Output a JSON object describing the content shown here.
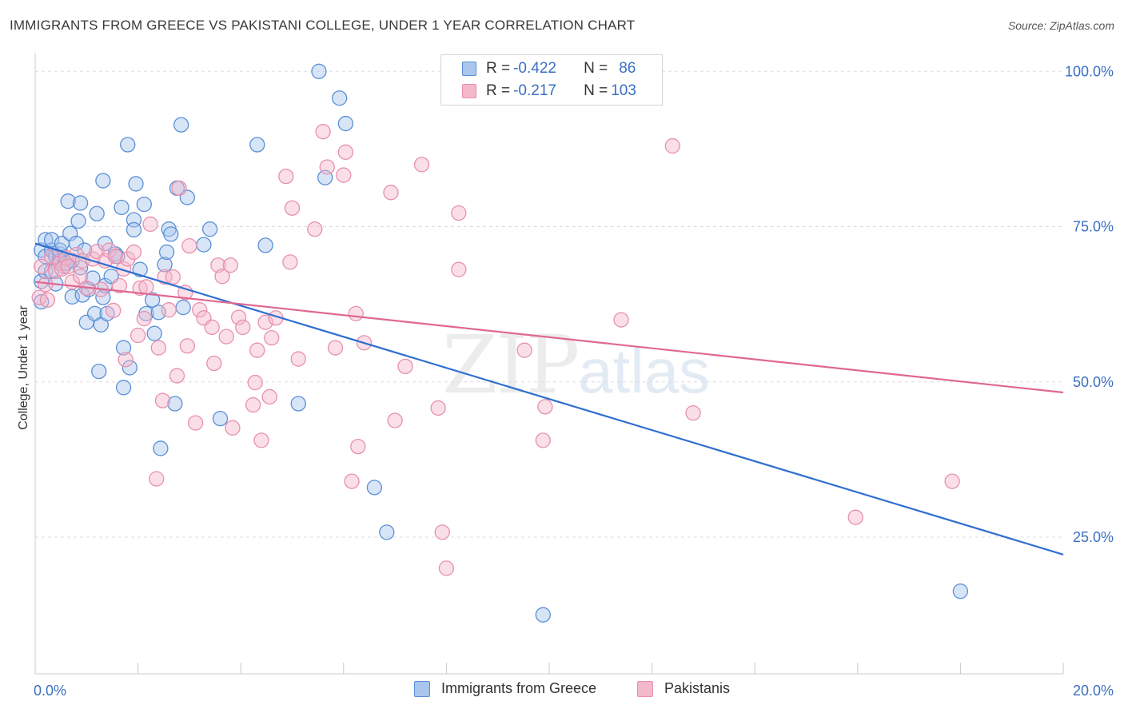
{
  "title": "IMMIGRANTS FROM GREECE VS PAKISTANI COLLEGE, UNDER 1 YEAR CORRELATION CHART",
  "source": "Source: ZipAtlas.com",
  "watermark": {
    "zip": "ZIP",
    "atlas": "atlas"
  },
  "legend": {
    "rows": [
      {
        "r_label": "R =",
        "r_value": "-0.422",
        "n_label": "N =",
        "n_value": "86"
      },
      {
        "r_label": "R =",
        "r_value": "-0.217",
        "n_label": "N =",
        "n_value": "103"
      }
    ]
  },
  "colors": {
    "blue_fill": "#a9c6ee",
    "blue_stroke": "#5b8fd6",
    "blue_line": "#2f6fd0",
    "pink_fill": "#f4b8cb",
    "pink_stroke": "#e890ad",
    "pink_line": "#e06890",
    "axis_text": "#3b6fc4",
    "grid": "#dddddd"
  },
  "chart_data": {
    "type": "scatter",
    "xlabel": "",
    "ylabel": "College, Under 1 year",
    "xlim": [
      0,
      20
    ],
    "ylim": [
      3,
      103
    ],
    "x_tick_labels": {
      "left": "0.0%",
      "right": "20.0%"
    },
    "y_ticks": [
      {
        "value": 100,
        "label": "100.0%"
      },
      {
        "value": 75,
        "label": "75.0%"
      },
      {
        "value": 50,
        "label": "50.0%"
      },
      {
        "value": 25,
        "label": "25.0%"
      }
    ],
    "grid": true,
    "series": [
      {
        "name": "Immigrants from Greece",
        "color": "blue",
        "trend": {
          "x": [
            0,
            20
          ],
          "y": [
            72.3,
            22.2
          ]
        },
        "points": [
          [
            0.12,
            71.2
          ],
          [
            0.12,
            66.2
          ],
          [
            0.12,
            62.9
          ],
          [
            0.2,
            67.8
          ],
          [
            0.2,
            70.2
          ],
          [
            0.2,
            72.9
          ],
          [
            0.32,
            71.2
          ],
          [
            0.32,
            72.9
          ],
          [
            0.32,
            67.8
          ],
          [
            0.4,
            65.8
          ],
          [
            0.4,
            70.2
          ],
          [
            0.48,
            70.6
          ],
          [
            0.48,
            69.5
          ],
          [
            0.48,
            71.2
          ],
          [
            0.52,
            72.3
          ],
          [
            0.56,
            68.6
          ],
          [
            0.6,
            69.1
          ],
          [
            0.64,
            79.1
          ],
          [
            0.68,
            73.9
          ],
          [
            0.72,
            69.5
          ],
          [
            0.72,
            63.7
          ],
          [
            0.8,
            72.3
          ],
          [
            0.84,
            75.9
          ],
          [
            0.88,
            78.8
          ],
          [
            0.88,
            68.4
          ],
          [
            0.92,
            64.0
          ],
          [
            0.96,
            71.2
          ],
          [
            1.0,
            59.6
          ],
          [
            1.04,
            64.9
          ],
          [
            1.12,
            66.7
          ],
          [
            1.16,
            61.0
          ],
          [
            1.2,
            77.1
          ],
          [
            1.24,
            51.7
          ],
          [
            1.28,
            59.2
          ],
          [
            1.32,
            63.6
          ],
          [
            1.32,
            82.4
          ],
          [
            1.36,
            72.3
          ],
          [
            1.36,
            65.5
          ],
          [
            1.4,
            61.0
          ],
          [
            1.48,
            67.0
          ],
          [
            1.56,
            70.6
          ],
          [
            1.6,
            70.2
          ],
          [
            1.68,
            78.1
          ],
          [
            1.72,
            55.5
          ],
          [
            1.72,
            49.1
          ],
          [
            1.8,
            88.2
          ],
          [
            1.84,
            52.3
          ],
          [
            1.92,
            76.1
          ],
          [
            1.92,
            74.5
          ],
          [
            1.96,
            81.9
          ],
          [
            2.04,
            68.1
          ],
          [
            2.12,
            78.6
          ],
          [
            2.16,
            61.0
          ],
          [
            2.28,
            63.2
          ],
          [
            2.32,
            57.8
          ],
          [
            2.4,
            61.2
          ],
          [
            2.44,
            39.3
          ],
          [
            2.52,
            68.9
          ],
          [
            2.56,
            70.9
          ],
          [
            2.6,
            74.6
          ],
          [
            2.64,
            73.8
          ],
          [
            2.72,
            46.5
          ],
          [
            2.76,
            81.2
          ],
          [
            2.84,
            91.4
          ],
          [
            2.88,
            62.0
          ],
          [
            2.96,
            79.7
          ],
          [
            3.28,
            72.1
          ],
          [
            3.4,
            74.6
          ],
          [
            3.6,
            44.1
          ],
          [
            4.32,
            88.2
          ],
          [
            4.48,
            72.0
          ],
          [
            5.12,
            46.5
          ],
          [
            5.52,
            100.0
          ],
          [
            5.64,
            82.9
          ],
          [
            5.92,
            95.7
          ],
          [
            6.04,
            91.6
          ],
          [
            6.6,
            33.0
          ],
          [
            6.84,
            25.8
          ],
          [
            9.88,
            12.5
          ],
          [
            18.0,
            16.3
          ]
        ]
      },
      {
        "name": "Pakistanis",
        "color": "pink",
        "trend": {
          "x": [
            0,
            20
          ],
          "y": [
            66.1,
            48.3
          ]
        },
        "points": [
          [
            0.08,
            63.6
          ],
          [
            0.12,
            68.6
          ],
          [
            0.2,
            65.7
          ],
          [
            0.24,
            63.2
          ],
          [
            0.32,
            70.2
          ],
          [
            0.4,
            67.8
          ],
          [
            0.48,
            69.1
          ],
          [
            0.52,
            68.2
          ],
          [
            0.6,
            70.0
          ],
          [
            0.64,
            68.6
          ],
          [
            0.72,
            66.1
          ],
          [
            0.8,
            70.5
          ],
          [
            0.88,
            67.0
          ],
          [
            0.92,
            69.5
          ],
          [
            1.0,
            65.1
          ],
          [
            1.12,
            69.8
          ],
          [
            1.2,
            71.0
          ],
          [
            1.28,
            64.9
          ],
          [
            1.36,
            69.5
          ],
          [
            1.44,
            71.2
          ],
          [
            1.52,
            61.5
          ],
          [
            1.56,
            70.2
          ],
          [
            1.64,
            65.5
          ],
          [
            1.72,
            68.2
          ],
          [
            1.76,
            53.6
          ],
          [
            1.8,
            69.8
          ],
          [
            1.92,
            70.9
          ],
          [
            2.0,
            57.5
          ],
          [
            2.04,
            65.1
          ],
          [
            2.12,
            60.2
          ],
          [
            2.16,
            65.3
          ],
          [
            2.24,
            75.4
          ],
          [
            2.36,
            34.4
          ],
          [
            2.4,
            55.5
          ],
          [
            2.48,
            47.0
          ],
          [
            2.52,
            66.9
          ],
          [
            2.6,
            61.6
          ],
          [
            2.68,
            66.9
          ],
          [
            2.76,
            51.0
          ],
          [
            2.8,
            81.2
          ],
          [
            2.92,
            64.4
          ],
          [
            2.96,
            55.8
          ],
          [
            3.0,
            71.9
          ],
          [
            3.12,
            43.4
          ],
          [
            3.2,
            61.6
          ],
          [
            3.28,
            60.3
          ],
          [
            3.44,
            58.8
          ],
          [
            3.48,
            53.0
          ],
          [
            3.56,
            68.8
          ],
          [
            3.64,
            67.0
          ],
          [
            3.72,
            57.3
          ],
          [
            3.8,
            68.8
          ],
          [
            3.84,
            42.6
          ],
          [
            3.96,
            60.4
          ],
          [
            4.04,
            58.8
          ],
          [
            4.24,
            46.3
          ],
          [
            4.28,
            49.9
          ],
          [
            4.32,
            55.1
          ],
          [
            4.4,
            40.6
          ],
          [
            4.48,
            59.6
          ],
          [
            4.56,
            47.6
          ],
          [
            4.6,
            57.1
          ],
          [
            4.68,
            60.3
          ],
          [
            4.88,
            83.1
          ],
          [
            4.96,
            69.3
          ],
          [
            5.0,
            78.0
          ],
          [
            5.12,
            53.7
          ],
          [
            5.44,
            74.6
          ],
          [
            5.6,
            90.3
          ],
          [
            5.68,
            84.6
          ],
          [
            5.84,
            55.5
          ],
          [
            6.0,
            83.3
          ],
          [
            6.04,
            87.0
          ],
          [
            6.16,
            34.0
          ],
          [
            6.24,
            61.0
          ],
          [
            6.28,
            39.6
          ],
          [
            6.4,
            56.3
          ],
          [
            6.92,
            80.5
          ],
          [
            7.0,
            43.8
          ],
          [
            7.2,
            52.5
          ],
          [
            7.52,
            85.0
          ],
          [
            7.84,
            45.8
          ],
          [
            7.92,
            25.8
          ],
          [
            8.0,
            20.0
          ],
          [
            8.24,
            77.2
          ],
          [
            8.24,
            68.1
          ],
          [
            9.52,
            55.1
          ],
          [
            9.92,
            46.0
          ],
          [
            9.88,
            40.6
          ],
          [
            11.4,
            60.0
          ],
          [
            12.4,
            88.0
          ],
          [
            12.8,
            45.0
          ],
          [
            15.96,
            28.2
          ],
          [
            17.84,
            34.0
          ]
        ]
      }
    ]
  },
  "bottom_legend": {
    "series1": "Immigrants from Greece",
    "series2": "Pakistanis"
  }
}
